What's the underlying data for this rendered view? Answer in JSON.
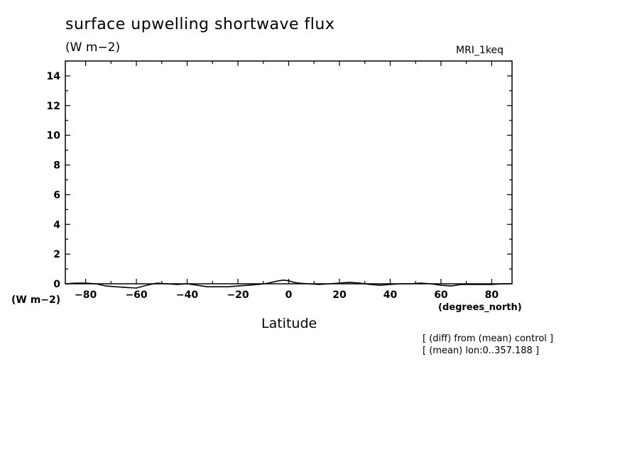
{
  "chart_data": {
    "type": "line",
    "title": "surface upwelling shortwave flux",
    "units": "(W m−2)",
    "model_label": "MRI_1keq",
    "ylabel": "(W m−2)",
    "xlabel": "Latitude",
    "xunits": "(degrees_north)",
    "notes": [
      "[ (diff) from (mean) control ]",
      "[ (mean) lon:0..357.188 ]"
    ],
    "xlim": [
      -88,
      88
    ],
    "ylim": [
      0,
      15
    ],
    "xticks": [
      -80,
      -60,
      -40,
      -20,
      0,
      20,
      40,
      60,
      80
    ],
    "xtick_labels": [
      "−80",
      "−60",
      "−40",
      "−20",
      "0",
      "20",
      "40",
      "60",
      "80"
    ],
    "yticks": [
      0,
      2,
      4,
      6,
      8,
      10,
      12,
      14
    ],
    "ytick_labels": [
      "0",
      "2",
      "4",
      "6",
      "8",
      "10",
      "12",
      "14"
    ],
    "series": [
      {
        "x": [
          -88,
          -84,
          -80,
          -76,
          -72,
          -68,
          -64,
          -60,
          -56,
          -52,
          -48,
          -44,
          -40,
          -36,
          -32,
          -28,
          -24,
          -20,
          -16,
          -12,
          -8,
          -4,
          -2,
          0,
          2,
          4,
          8,
          12,
          16,
          20,
          24,
          28,
          32,
          36,
          40,
          44,
          48,
          52,
          56,
          60,
          64,
          68,
          72,
          76,
          80,
          84,
          88
        ],
        "y": [
          0.0,
          0.05,
          0.05,
          0.0,
          -0.15,
          -0.2,
          -0.25,
          -0.3,
          -0.1,
          0.05,
          0.0,
          -0.05,
          0.0,
          -0.1,
          -0.2,
          -0.2,
          -0.2,
          -0.15,
          -0.1,
          -0.05,
          0.05,
          0.2,
          0.25,
          0.2,
          0.1,
          0.05,
          0.0,
          -0.05,
          0.0,
          0.05,
          0.1,
          0.05,
          -0.05,
          -0.1,
          -0.05,
          0.0,
          0.0,
          0.05,
          0.0,
          -0.1,
          -0.15,
          -0.05,
          -0.05,
          -0.05,
          -0.05,
          0.0,
          0.0
        ]
      }
    ]
  }
}
